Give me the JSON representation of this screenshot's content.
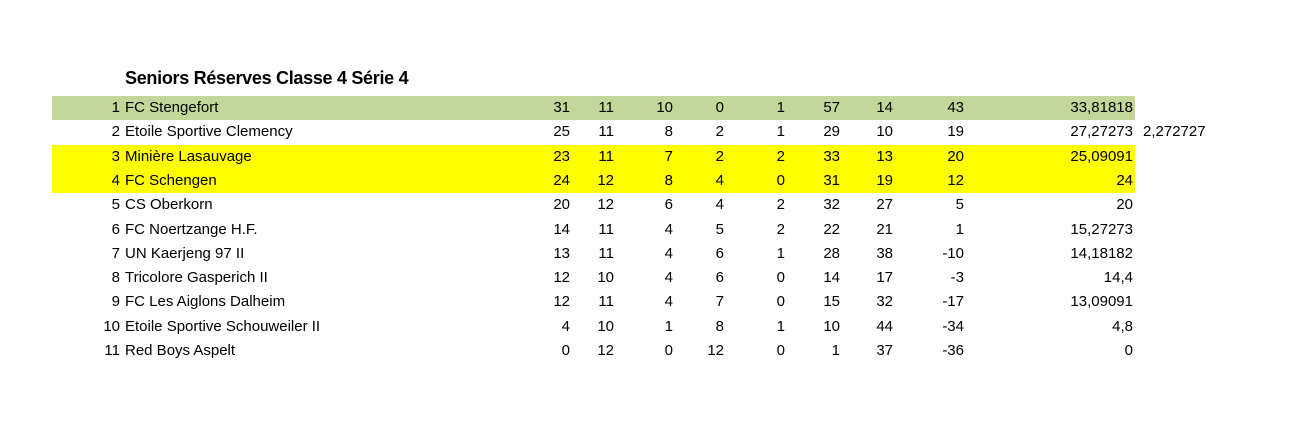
{
  "title": "Seniors Réserves Classe 4 Série 4",
  "colors": {
    "first": "#c4d79b",
    "highlight": "#ffff00"
  },
  "rows": [
    {
      "rank": "1",
      "team": "FC Stengefort",
      "pts": "31",
      "played": "11",
      "w": "10",
      "d": "0",
      "l": "1",
      "gf": "57",
      "ga": "14",
      "diff": "43",
      "ratio": "33,81818",
      "extra": "",
      "fill": "first"
    },
    {
      "rank": "2",
      "team": "Etoile Sportive Clemency",
      "pts": "25",
      "played": "11",
      "w": "8",
      "d": "2",
      "l": "1",
      "gf": "29",
      "ga": "10",
      "diff": "19",
      "ratio": "27,27273",
      "extra": "2,272727",
      "fill": ""
    },
    {
      "rank": "3",
      "team": "Minière Lasauvage",
      "pts": "23",
      "played": "11",
      "w": "7",
      "d": "2",
      "l": "2",
      "gf": "33",
      "ga": "13",
      "diff": "20",
      "ratio": "25,09091",
      "extra": "",
      "fill": "highlight"
    },
    {
      "rank": "4",
      "team": "FC Schengen",
      "pts": "24",
      "played": "12",
      "w": "8",
      "d": "4",
      "l": "0",
      "gf": "31",
      "ga": "19",
      "diff": "12",
      "ratio": "24",
      "extra": "",
      "fill": "highlight"
    },
    {
      "rank": "5",
      "team": "CS Oberkorn",
      "pts": "20",
      "played": "12",
      "w": "6",
      "d": "4",
      "l": "2",
      "gf": "32",
      "ga": "27",
      "diff": "5",
      "ratio": "20",
      "extra": "",
      "fill": ""
    },
    {
      "rank": "6",
      "team": "FC Noertzange H.F.",
      "pts": "14",
      "played": "11",
      "w": "4",
      "d": "5",
      "l": "2",
      "gf": "22",
      "ga": "21",
      "diff": "1",
      "ratio": "15,27273",
      "extra": "",
      "fill": ""
    },
    {
      "rank": "7",
      "team": "UN Kaerjeng 97 II",
      "pts": "13",
      "played": "11",
      "w": "4",
      "d": "6",
      "l": "1",
      "gf": "28",
      "ga": "38",
      "diff": "-10",
      "ratio": "14,18182",
      "extra": "",
      "fill": ""
    },
    {
      "rank": "8",
      "team": "Tricolore Gasperich II",
      "pts": "12",
      "played": "10",
      "w": "4",
      "d": "6",
      "l": "0",
      "gf": "14",
      "ga": "17",
      "diff": "-3",
      "ratio": "14,4",
      "extra": "",
      "fill": ""
    },
    {
      "rank": "9",
      "team": "FC Les Aiglons Dalheim",
      "pts": "12",
      "played": "11",
      "w": "4",
      "d": "7",
      "l": "0",
      "gf": "15",
      "ga": "32",
      "diff": "-17",
      "ratio": "13,09091",
      "extra": "",
      "fill": ""
    },
    {
      "rank": "10",
      "team": "Etoile Sportive Schouweiler II",
      "pts": "4",
      "played": "10",
      "w": "1",
      "d": "8",
      "l": "1",
      "gf": "10",
      "ga": "44",
      "diff": "-34",
      "ratio": "4,8",
      "extra": "",
      "fill": ""
    },
    {
      "rank": "11",
      "team": "Red Boys Aspelt",
      "pts": "0",
      "played": "12",
      "w": "0",
      "d": "12",
      "l": "0",
      "gf": "1",
      "ga": "37",
      "diff": "-36",
      "ratio": "0",
      "extra": "",
      "fill": ""
    }
  ]
}
